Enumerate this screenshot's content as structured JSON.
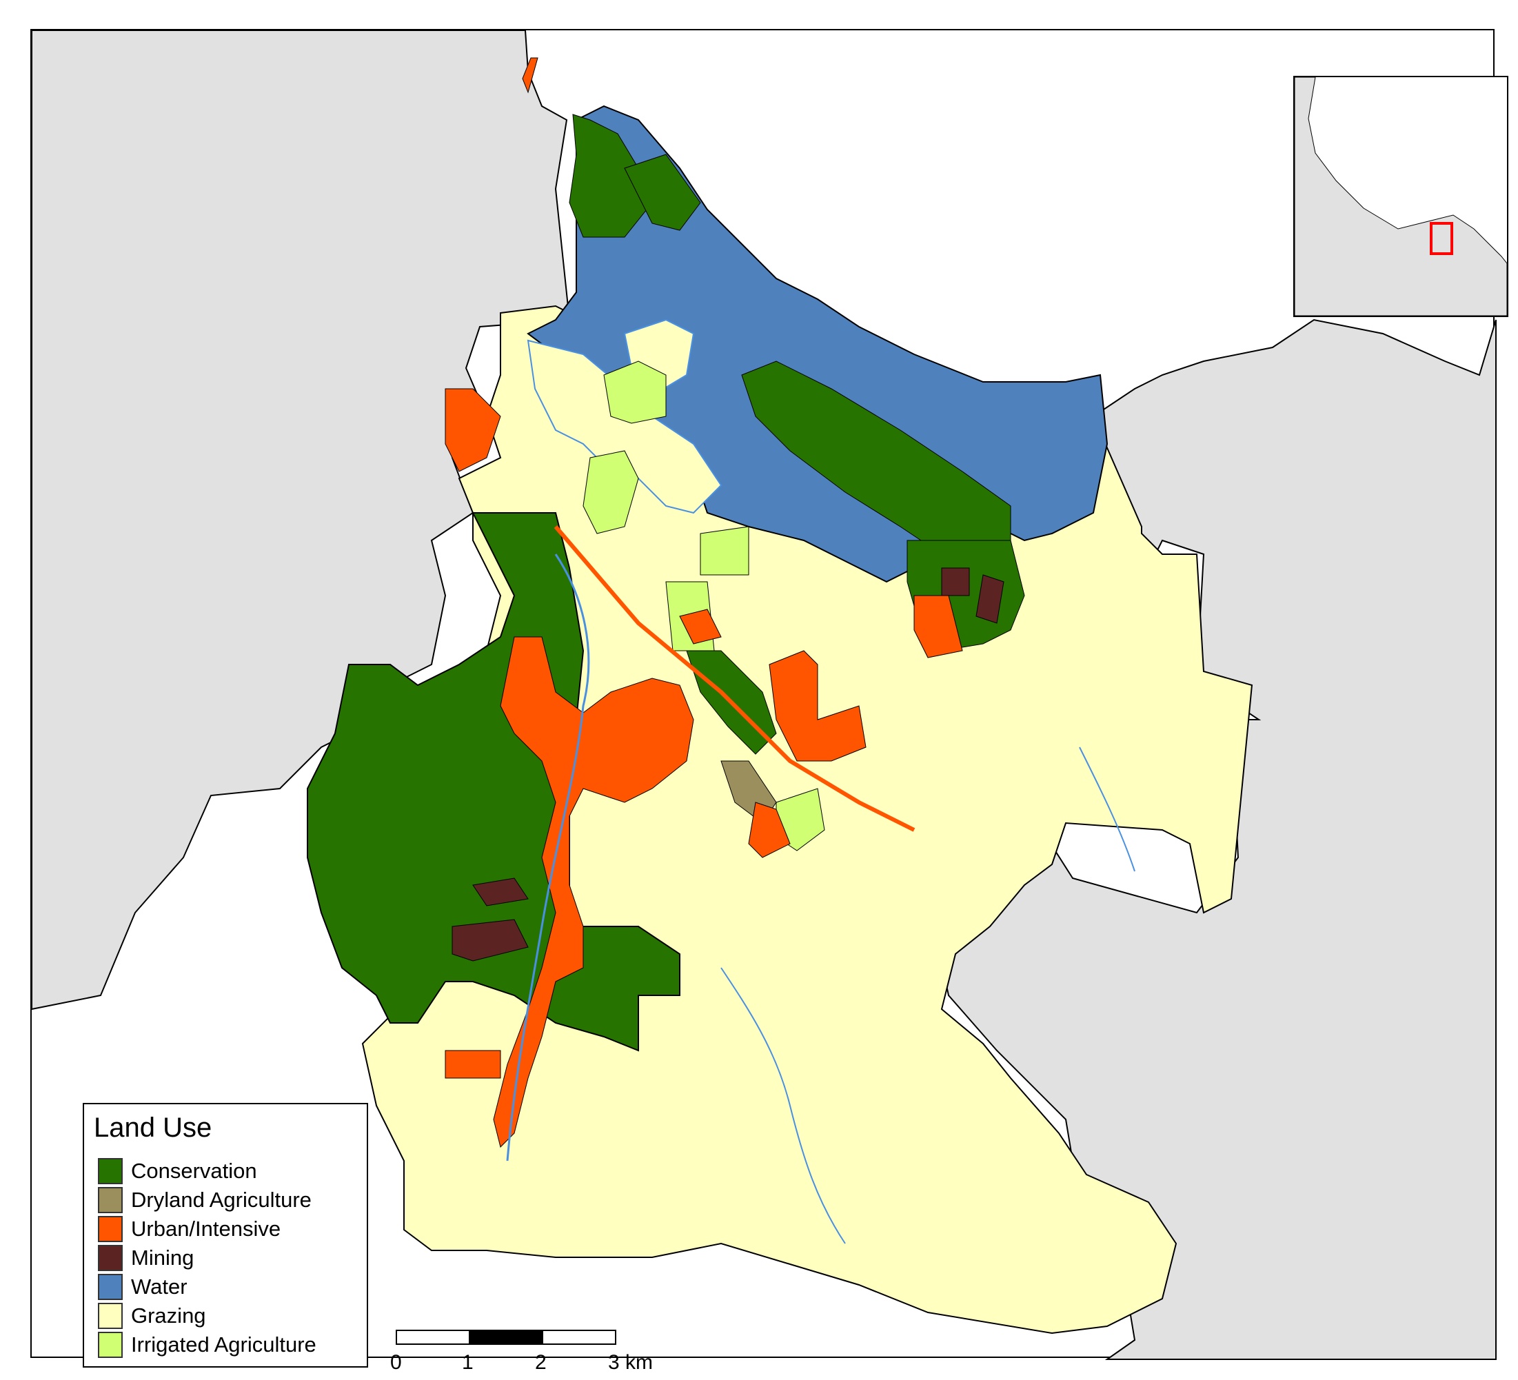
{
  "legend": {
    "title": "Land Use",
    "items": [
      {
        "label": "Conservation",
        "color": "#267300"
      },
      {
        "label": "Dryland Agriculture",
        "color": "#9c8f5e"
      },
      {
        "label": "Urban/Intensive",
        "color": "#ff5500"
      },
      {
        "label": "Mining",
        "color": "#5c2323"
      },
      {
        "label": "Water",
        "color": "#4f81bd"
      },
      {
        "label": "Grazing",
        "color": "#ffffc0"
      },
      {
        "label": "Irrigated Agriculture",
        "color": "#d1ff73"
      }
    ]
  },
  "scalebar": {
    "labels": [
      "0",
      "1",
      "2",
      "3 km"
    ]
  },
  "colors": {
    "ocean": "#ffffff",
    "surrounding_land": "#e1e1e1",
    "river": "#4a90e2",
    "inset_highlight": "#ff0000"
  }
}
